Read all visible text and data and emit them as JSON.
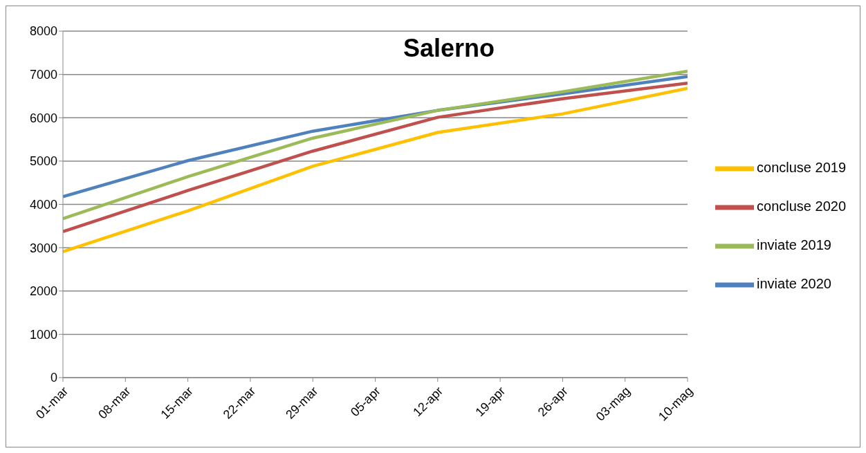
{
  "chart_data": {
    "type": "line",
    "title": "Salerno",
    "x": [
      "--03-01",
      "--03-15",
      "--03-29",
      "--04-12",
      "--04-26",
      "--05-10"
    ],
    "xlim": [
      "--03-01",
      "--05-10"
    ],
    "xticks": [
      {
        "value": "--03-01",
        "label": "01-mar"
      },
      {
        "value": "--03-08",
        "label": "08-mar"
      },
      {
        "value": "--03-15",
        "label": "15-mar"
      },
      {
        "value": "--03-22",
        "label": "22-mar"
      },
      {
        "value": "--03-29",
        "label": "29-mar"
      },
      {
        "value": "--04-05",
        "label": "05-apr"
      },
      {
        "value": "--04-12",
        "label": "12-apr"
      },
      {
        "value": "--04-19",
        "label": "19-apr"
      },
      {
        "value": "--04-26",
        "label": "26-apr"
      },
      {
        "value": "--05-03",
        "label": "03-mag"
      },
      {
        "value": "--05-10",
        "label": "10-mag"
      }
    ],
    "ylim": [
      0,
      8000
    ],
    "yticks": [
      0,
      1000,
      2000,
      3000,
      4000,
      5000,
      6000,
      7000,
      8000
    ],
    "grid": "y",
    "legend": "right",
    "line_style": "solid",
    "series": [
      {
        "name": "inviate 2020",
        "color": "#4f81bd",
        "values": [
          4180,
          5010,
          5690,
          6170,
          6550,
          6950
        ]
      },
      {
        "name": "concluse 2020",
        "color": "#c0504d",
        "values": [
          3370,
          4320,
          5230,
          6010,
          6440,
          6800
        ]
      },
      {
        "name": "inviate 2019",
        "color": "#9bbb59",
        "values": [
          3670,
          4640,
          5530,
          6170,
          6600,
          7075
        ]
      },
      {
        "name": "concluse 2019",
        "color": "#ffc000",
        "values": [
          2910,
          3850,
          4880,
          5660,
          6090,
          6680
        ]
      }
    ]
  }
}
